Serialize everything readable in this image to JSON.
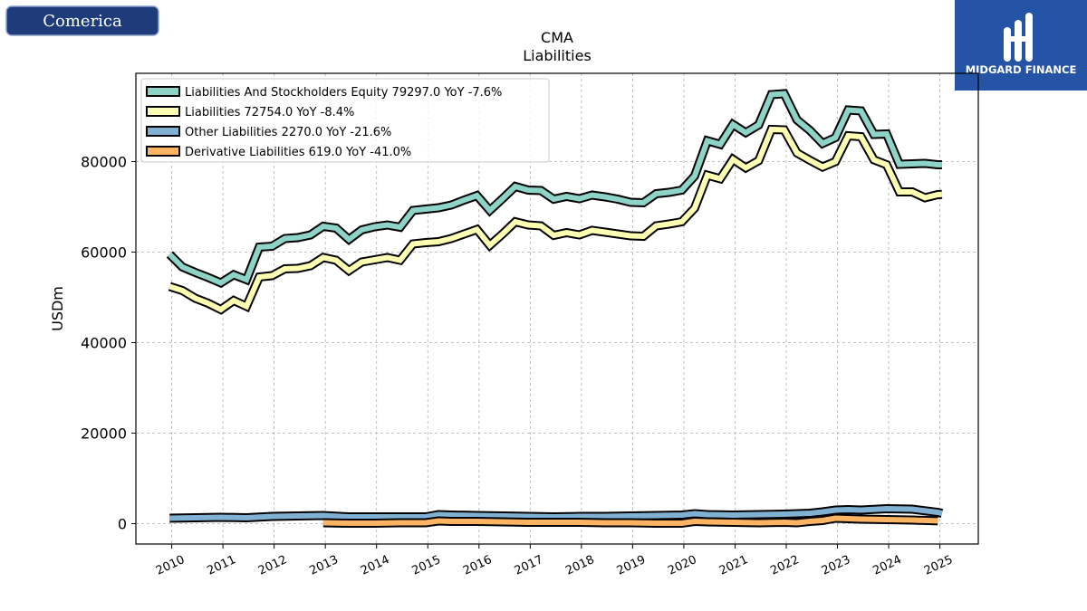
{
  "branding": {
    "left_logo_text": "Comerica",
    "right_logo_text": "MIDGARD FINANCE",
    "left_logo_color": "#1f3c7a",
    "right_logo_color": "#2553a6"
  },
  "chart_data": {
    "type": "line",
    "title": "CMA",
    "subtitle": "Liabilities",
    "xlabel": "",
    "ylabel": "USDm",
    "xlim": [
      2009.3,
      2025.75
    ],
    "ylim": [
      -4500,
      99500
    ],
    "yticks": [
      0,
      20000,
      40000,
      60000,
      80000
    ],
    "ytick_labels": [
      "0",
      "20000",
      "40000",
      "60000",
      "80000"
    ],
    "xticks": [
      2010,
      2011,
      2012,
      2013,
      2014,
      2015,
      2016,
      2017,
      2018,
      2019,
      2020,
      2021,
      2022,
      2023,
      2024,
      2025
    ],
    "xtick_labels": [
      "2010",
      "2011",
      "2012",
      "2013",
      "2014",
      "2015",
      "2016",
      "2017",
      "2018",
      "2019",
      "2020",
      "2021",
      "2022",
      "2023",
      "2024",
      "2025"
    ],
    "grid": true,
    "legend_position": "top-left",
    "series": [
      {
        "name": "Liabilities And Stockholders Equity",
        "legend_label": "Liabilities And Stockholders Equity  79297.0 YoY -7.6%",
        "color": "#8dd3c7",
        "x": [
          2009.96,
          2010.21,
          2010.46,
          2010.71,
          2010.96,
          2011.21,
          2011.46,
          2011.71,
          2011.96,
          2012.21,
          2012.46,
          2012.71,
          2012.96,
          2013.21,
          2013.46,
          2013.71,
          2013.96,
          2014.21,
          2014.46,
          2014.71,
          2014.96,
          2015.21,
          2015.46,
          2015.71,
          2015.96,
          2016.21,
          2016.46,
          2016.71,
          2016.96,
          2017.21,
          2017.46,
          2017.71,
          2017.96,
          2018.21,
          2018.46,
          2018.71,
          2018.96,
          2019.21,
          2019.46,
          2019.71,
          2019.96,
          2020.21,
          2020.46,
          2020.71,
          2020.96,
          2021.21,
          2021.46,
          2021.71,
          2021.96,
          2022.21,
          2022.46,
          2022.71,
          2022.96,
          2023.21,
          2023.46,
          2023.71,
          2023.96,
          2024.21,
          2024.46,
          2024.71,
          2024.96,
          2025.04
        ],
        "y": [
          59500,
          56700,
          55500,
          54400,
          53200,
          55000,
          53900,
          61100,
          61300,
          63000,
          63200,
          63800,
          65700,
          65300,
          62800,
          64900,
          65600,
          66000,
          65500,
          69200,
          69500,
          69800,
          70400,
          71500,
          72500,
          69200,
          71800,
          74500,
          73700,
          73600,
          71700,
          72300,
          71800,
          72600,
          72200,
          71700,
          71000,
          70900,
          72900,
          73200,
          73700,
          76800,
          84600,
          83800,
          88200,
          86400,
          88100,
          94800,
          95000,
          89200,
          86900,
          84000,
          85300,
          91400,
          91200,
          86000,
          86100,
          79400,
          79500,
          79600,
          79300,
          79297
        ]
      },
      {
        "name": "Liabilities",
        "legend_label": "Liabilities  72754.0 YoY -8.4%",
        "color": "#ffffb3",
        "x": [
          2009.96,
          2010.21,
          2010.46,
          2010.71,
          2010.96,
          2011.21,
          2011.46,
          2011.71,
          2011.96,
          2012.21,
          2012.46,
          2012.71,
          2012.96,
          2013.21,
          2013.46,
          2013.71,
          2013.96,
          2014.21,
          2014.46,
          2014.71,
          2014.96,
          2015.21,
          2015.46,
          2015.71,
          2015.96,
          2016.21,
          2016.46,
          2016.71,
          2016.96,
          2017.21,
          2017.46,
          2017.71,
          2017.96,
          2018.21,
          2018.46,
          2018.71,
          2018.96,
          2019.21,
          2019.46,
          2019.71,
          2019.96,
          2020.21,
          2020.46,
          2020.71,
          2020.96,
          2021.21,
          2021.46,
          2021.71,
          2021.96,
          2022.21,
          2022.46,
          2022.71,
          2022.96,
          2023.21,
          2023.46,
          2023.71,
          2023.96,
          2024.21,
          2024.46,
          2024.71,
          2024.96,
          2025.04
        ],
        "y": [
          52400,
          51500,
          49800,
          48700,
          47300,
          49300,
          48000,
          54500,
          54800,
          56300,
          56400,
          57000,
          58800,
          58200,
          55900,
          57800,
          58300,
          58800,
          58200,
          61800,
          62100,
          62300,
          63000,
          64000,
          65000,
          61500,
          64000,
          66700,
          66000,
          65800,
          63700,
          64300,
          63800,
          64800,
          64400,
          64000,
          63600,
          63500,
          65800,
          66200,
          66700,
          69700,
          77000,
          76200,
          80500,
          78600,
          80200,
          87100,
          87000,
          81900,
          80300,
          78800,
          80000,
          85700,
          85500,
          80400,
          79300,
          73300,
          73300,
          72000,
          72700,
          72754
        ]
      },
      {
        "name": "Other Liabilities",
        "legend_label": "Other Liabilities  2270.0 YoY -21.6%",
        "color": "#80b1d3",
        "x": [
          2009.96,
          2010.46,
          2010.96,
          2011.46,
          2011.96,
          2012.46,
          2012.96,
          2013.46,
          2013.96,
          2014.46,
          2014.96,
          2015.21,
          2015.46,
          2015.96,
          2016.46,
          2016.96,
          2017.46,
          2017.96,
          2018.46,
          2018.96,
          2019.46,
          2019.96,
          2020.21,
          2020.46,
          2020.96,
          2021.46,
          2021.96,
          2022.46,
          2022.71,
          2022.96,
          2023.21,
          2023.46,
          2023.96,
          2024.46,
          2024.96,
          2025.04
        ],
        "y": [
          1200,
          1300,
          1400,
          1300,
          1600,
          1700,
          1800,
          1500,
          1500,
          1500,
          1500,
          2000,
          1900,
          1800,
          1700,
          1600,
          1500,
          1600,
          1600,
          1700,
          1800,
          1900,
          2200,
          2000,
          1900,
          2000,
          2100,
          2300,
          2600,
          3000,
          3100,
          3000,
          3300,
          3200,
          2500,
          2270
        ]
      },
      {
        "name": "Derivative Liabilities",
        "legend_label": "Derivative Liabilities  619.0 YoY -41.0%",
        "color": "#fdb462",
        "x": [
          2012.96,
          2013.46,
          2013.96,
          2014.46,
          2014.96,
          2015.21,
          2015.46,
          2015.96,
          2016.46,
          2016.96,
          2017.46,
          2017.96,
          2018.46,
          2018.96,
          2019.46,
          2019.96,
          2020.21,
          2020.46,
          2020.96,
          2021.46,
          2021.96,
          2022.21,
          2022.46,
          2022.71,
          2022.96,
          2023.21,
          2023.46,
          2023.96,
          2024.46,
          2024.96
        ],
        "y": [
          200,
          100,
          100,
          200,
          200,
          600,
          500,
          500,
          400,
          300,
          300,
          300,
          200,
          200,
          100,
          100,
          500,
          400,
          300,
          200,
          300,
          200,
          500,
          700,
          1200,
          1100,
          1000,
          900,
          800,
          619
        ]
      }
    ]
  }
}
